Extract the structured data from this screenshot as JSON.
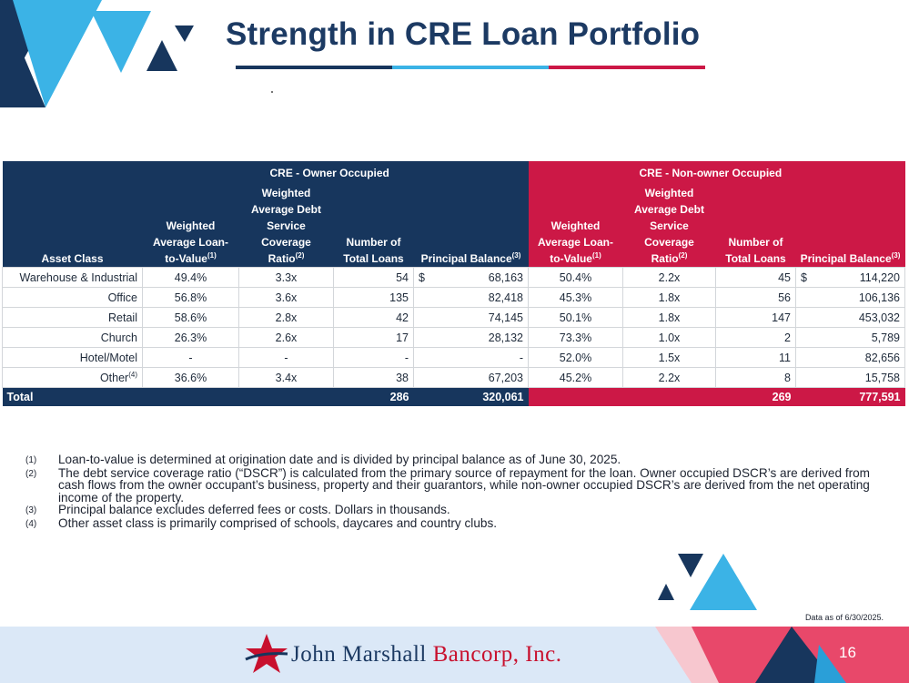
{
  "title": "Strength in CRE Loan Portfolio",
  "colors": {
    "navy": "#17365d",
    "red": "#cc1846",
    "sky": "#3bb3e6"
  },
  "table": {
    "group_owner": "CRE - Owner Occupied",
    "group_non_owner": "CRE - Non-owner Occupied",
    "col_asset_class": "Asset Class",
    "col_ltv_a": "Weighted",
    "col_ltv_b": "Average Loan-",
    "col_ltv_c": "to-Value",
    "col_dscr_a": "Weighted",
    "col_dscr_b": "Average Debt",
    "col_dscr_c": "Service",
    "col_dscr_d": "Coverage",
    "col_dscr_e": "Ratio",
    "col_loans_a": "Number of",
    "col_loans_b": "Total Loans",
    "col_balance": "Principal Balance",
    "fn1": "(1)",
    "fn2": "(2)",
    "fn3": "(3)",
    "fn4": "(4)",
    "dollar": "$",
    "rows": [
      {
        "asset": "Warehouse & Industrial",
        "o_ltv": "49.4%",
        "o_dscr": "3.3x",
        "o_loans": "54",
        "o_bal": "68,163",
        "n_ltv": "50.4%",
        "n_dscr": "2.2x",
        "n_loans": "45",
        "n_bal": "114,220"
      },
      {
        "asset": "Office",
        "o_ltv": "56.8%",
        "o_dscr": "3.6x",
        "o_loans": "135",
        "o_bal": "82,418",
        "n_ltv": "45.3%",
        "n_dscr": "1.8x",
        "n_loans": "56",
        "n_bal": "106,136"
      },
      {
        "asset": "Retail",
        "o_ltv": "58.6%",
        "o_dscr": "2.8x",
        "o_loans": "42",
        "o_bal": "74,145",
        "n_ltv": "50.1%",
        "n_dscr": "1.8x",
        "n_loans": "147",
        "n_bal": "453,032"
      },
      {
        "asset": "Church",
        "o_ltv": "26.3%",
        "o_dscr": "2.6x",
        "o_loans": "17",
        "o_bal": "28,132",
        "n_ltv": "73.3%",
        "n_dscr": "1.0x",
        "n_loans": "2",
        "n_bal": "5,789"
      },
      {
        "asset": "Hotel/Motel",
        "o_ltv": "-",
        "o_dscr": "-",
        "o_loans": "-",
        "o_bal": "-",
        "n_ltv": "52.0%",
        "n_dscr": "1.5x",
        "n_loans": "11",
        "n_bal": "82,656"
      },
      {
        "asset": "Other",
        "o_ltv": "36.6%",
        "o_dscr": "3.4x",
        "o_loans": "38",
        "o_bal": "67,203",
        "n_ltv": "45.2%",
        "n_dscr": "2.2x",
        "n_loans": "8",
        "n_bal": "15,758"
      }
    ],
    "total": {
      "label": "Total",
      "o_loans": "286",
      "o_bal": "320,061",
      "n_loans": "269",
      "n_bal": "777,591"
    }
  },
  "notes": [
    {
      "num": "(1)",
      "text": "Loan-to-value is determined at origination date and is divided by principal balance as of June 30, 2025."
    },
    {
      "num": "(2)",
      "text": "The debt service coverage ratio (“DSCR”) is calculated from the primary source of repayment for the loan. Owner occupied DSCR’s are derived from cash flows from the owner occupant’s business, property and their guarantors, while non-owner occupied DSCR’s are derived from the net operating income of the property."
    },
    {
      "num": "(3)",
      "text": "Principal balance excludes deferred fees or costs. Dollars in thousands."
    },
    {
      "num": "(4)",
      "text": "Other asset class is primarily comprised of schools, daycares and country clubs."
    }
  ],
  "as_of": "Data as of 6/30/2025.",
  "bank": {
    "name_part1": "John Marshall ",
    "name_part2": "Bancorp, Inc."
  },
  "page_number": "16",
  "icons": {
    "corner": "triangle-logo-icon",
    "mid": "triangle-mark-icon",
    "star": "star-icon"
  }
}
